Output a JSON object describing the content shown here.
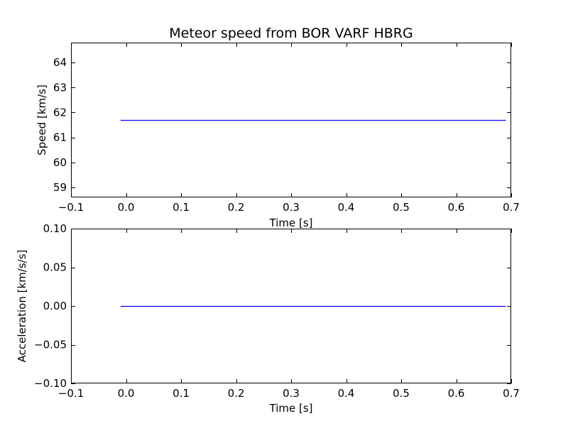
{
  "colors": {
    "series": "#0000ff",
    "axes": "#000000",
    "background": "#ffffff"
  },
  "chart_data": [
    {
      "type": "line",
      "title": "Meteor speed from  BOR VARF HBRG",
      "xlabel": "Time [s]",
      "ylabel": "Speed [km/s]",
      "xlim": [
        -0.1,
        0.7
      ],
      "ylim": [
        58.6,
        64.8
      ],
      "xticks": [
        -0.1,
        0.0,
        0.1,
        0.2,
        0.3,
        0.4,
        0.5,
        0.6,
        0.7
      ],
      "xtick_labels": [
        "−0.1",
        "0.0",
        "0.1",
        "0.2",
        "0.3",
        "0.4",
        "0.5",
        "0.6",
        "0.7"
      ],
      "yticks": [
        59,
        60,
        61,
        62,
        63,
        64
      ],
      "ytick_labels": [
        "59",
        "60",
        "61",
        "62",
        "63",
        "64"
      ],
      "grid": false,
      "series": [
        {
          "x": [
            -0.01,
            0.69
          ],
          "y": [
            61.7,
            61.7
          ]
        }
      ]
    },
    {
      "type": "line",
      "title": "",
      "xlabel": "Time [s]",
      "ylabel": "Acceleration [km/s/s]",
      "xlim": [
        -0.1,
        0.7
      ],
      "ylim": [
        -0.1,
        0.1
      ],
      "xticks": [
        -0.1,
        0.0,
        0.1,
        0.2,
        0.3,
        0.4,
        0.5,
        0.6,
        0.7
      ],
      "xtick_labels": [
        "−0.1",
        "0.0",
        "0.1",
        "0.2",
        "0.3",
        "0.4",
        "0.5",
        "0.6",
        "0.7"
      ],
      "yticks": [
        -0.1,
        -0.05,
        0.0,
        0.05,
        0.1
      ],
      "ytick_labels": [
        "−0.10",
        "−0.05",
        "0.00",
        "0.05",
        "0.10"
      ],
      "grid": false,
      "series": [
        {
          "x": [
            -0.01,
            0.69
          ],
          "y": [
            0.0,
            0.0
          ]
        }
      ]
    }
  ]
}
